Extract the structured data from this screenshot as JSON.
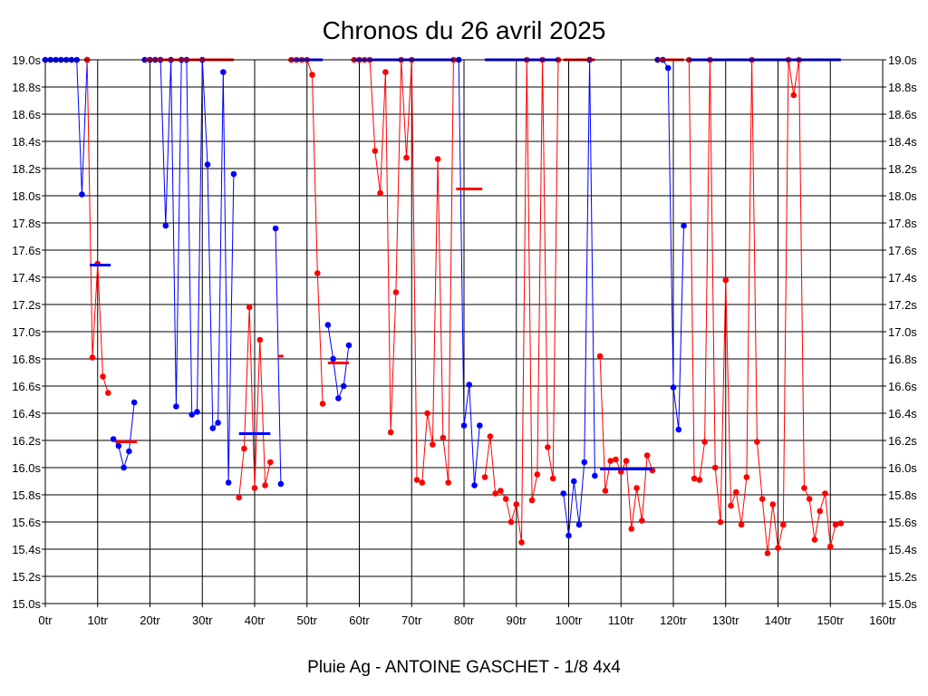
{
  "chart_data": {
    "type": "line",
    "title": "Chronos du 26 avril 2025",
    "subtitle": "Pluie Ag - ANTOINE GASCHET - 1/8 4x4",
    "xlabel": "",
    "ylabel": "",
    "xlim": [
      0,
      160
    ],
    "ylim": [
      15.0,
      19.0
    ],
    "x_ticks": [
      0,
      10,
      20,
      30,
      40,
      50,
      60,
      70,
      80,
      90,
      100,
      110,
      120,
      130,
      140,
      150,
      160
    ],
    "x_tick_labels": [
      "0tr",
      "10tr",
      "20tr",
      "30tr",
      "40tr",
      "50tr",
      "60tr",
      "70tr",
      "80tr",
      "90tr",
      "100tr",
      "110tr",
      "120tr",
      "130tr",
      "140tr",
      "150tr",
      "160tr"
    ],
    "y_ticks": [
      15.0,
      15.2,
      15.4,
      15.6,
      15.8,
      16.0,
      16.2,
      16.4,
      16.6,
      16.8,
      17.0,
      17.2,
      17.4,
      17.6,
      17.8,
      18.0,
      18.2,
      18.4,
      18.6,
      18.8,
      19.0
    ],
    "y_tick_labels": [
      "15.0s",
      "15.2s",
      "15.4s",
      "15.6s",
      "15.8s",
      "16.0s",
      "16.2s",
      "16.4s",
      "16.6s",
      "16.8s",
      "17.0s",
      "17.2s",
      "17.4s",
      "17.6s",
      "17.8s",
      "18.0s",
      "18.2s",
      "18.4s",
      "18.6s",
      "18.8s",
      "19.0s"
    ],
    "y_axis_right": true,
    "grid": true,
    "legend": "none",
    "colors": {
      "blue": "#0000ff",
      "red": "#ff0000",
      "grid": "#000000"
    },
    "series": [
      {
        "color": "blue",
        "x": [
          0,
          1,
          2,
          3,
          4,
          5,
          6,
          7,
          8
        ],
        "y": [
          19.0,
          19.0,
          19.0,
          19.0,
          19.0,
          19.0,
          19.0,
          18.01,
          19.0
        ]
      },
      {
        "color": "red",
        "x": [
          8,
          9,
          10,
          11,
          12
        ],
        "y": [
          19.0,
          16.81,
          17.5,
          16.67,
          16.55
        ]
      },
      {
        "color": "blue",
        "x": [
          13,
          14,
          15,
          16,
          17
        ],
        "y": [
          16.21,
          16.16,
          16.0,
          16.12,
          16.48
        ]
      },
      {
        "color": "blue",
        "x": [
          19,
          20,
          21,
          22,
          23,
          24,
          25,
          26,
          27,
          28,
          29,
          30,
          31,
          32,
          33,
          34,
          35,
          36
        ],
        "y": [
          19.0,
          19.0,
          19.0,
          19.0,
          17.78,
          19.0,
          16.45,
          19.0,
          19.0,
          16.39,
          16.41,
          19.0,
          18.23,
          16.29,
          16.33,
          18.91,
          15.89,
          18.16
        ]
      },
      {
        "color": "red",
        "x": [
          37,
          38,
          39,
          40,
          41,
          42,
          43
        ],
        "y": [
          15.78,
          16.14,
          17.18,
          15.85,
          16.94,
          15.87,
          16.04
        ]
      },
      {
        "color": "blue",
        "x": [
          44,
          45
        ],
        "y": [
          17.76,
          15.88
        ]
      },
      {
        "color": "red",
        "x": [
          47,
          48,
          49,
          50,
          51,
          52,
          53
        ],
        "y": [
          19.0,
          19.0,
          19.0,
          19.0,
          18.89,
          17.43,
          16.47
        ]
      },
      {
        "color": "blue",
        "x": [
          54,
          55,
          56,
          57,
          58
        ],
        "y": [
          17.05,
          16.8,
          16.51,
          16.6,
          16.9
        ]
      },
      {
        "color": "red",
        "x": [
          59,
          60,
          61,
          62,
          63,
          64,
          65,
          66,
          67,
          68,
          69,
          70,
          71,
          72,
          73,
          74,
          75,
          76,
          77,
          78
        ],
        "y": [
          19.0,
          19.0,
          19.0,
          19.0,
          18.33,
          18.02,
          18.91,
          16.26,
          17.29,
          19.0,
          18.28,
          19.0,
          15.91,
          15.89,
          16.4,
          16.17,
          18.27,
          16.22,
          15.89,
          19.0
        ]
      },
      {
        "color": "blue",
        "x": [
          79,
          80,
          81,
          82,
          83
        ],
        "y": [
          19.0,
          16.31,
          16.61,
          15.87,
          16.31
        ]
      },
      {
        "color": "red",
        "x": [
          84,
          85,
          86,
          87,
          88,
          89,
          90,
          91,
          92,
          93,
          94,
          95,
          96,
          97,
          98
        ],
        "y": [
          15.93,
          16.23,
          15.81,
          15.83,
          15.77,
          15.6,
          15.73,
          15.45,
          19.0,
          15.76,
          15.95,
          19.0,
          16.15,
          15.92,
          19.0
        ]
      },
      {
        "color": "blue",
        "x": [
          99,
          100,
          101,
          102,
          103,
          104,
          105
        ],
        "y": [
          15.81,
          15.5,
          15.9,
          15.58,
          16.04,
          19.0,
          15.94
        ]
      },
      {
        "color": "red",
        "x": [
          106,
          107,
          108,
          109,
          110,
          111,
          112,
          113,
          114,
          115,
          116
        ],
        "y": [
          16.82,
          15.83,
          16.05,
          16.06,
          15.97,
          16.05,
          15.55,
          15.85,
          15.61,
          16.09,
          15.98
        ]
      },
      {
        "color": "blue",
        "x": [
          117,
          118,
          119,
          120,
          121,
          122
        ],
        "y": [
          19.0,
          19.0,
          18.94,
          16.59,
          16.28,
          17.78
        ]
      },
      {
        "color": "red",
        "x": [
          123,
          124,
          125,
          126,
          127,
          128,
          129,
          130,
          131,
          132,
          133,
          134,
          135,
          136,
          137,
          138,
          139,
          140,
          141,
          142,
          143,
          144,
          145,
          146,
          147,
          148,
          149,
          150,
          151,
          152
        ],
        "y": [
          19.0,
          15.92,
          15.91,
          16.19,
          19.0,
          16.0,
          15.6,
          17.38,
          15.72,
          15.82,
          15.58,
          15.93,
          19.0,
          16.19,
          15.77,
          15.37,
          15.73,
          15.41,
          15.58,
          19.0,
          18.74,
          19.0,
          15.85,
          15.77,
          15.47,
          15.68,
          15.81,
          15.42,
          15.58,
          15.59
        ]
      }
    ],
    "average_markers": [
      {
        "color": "blue",
        "x_start": 8.5,
        "x_end": 12.5,
        "y": 17.49
      },
      {
        "color": "red",
        "x_start": 13.5,
        "x_end": 17.5,
        "y": 16.19
      },
      {
        "color": "red",
        "x_start": 19.0,
        "x_end": 36.0,
        "y": 19.0
      },
      {
        "color": "blue",
        "x_start": 37.0,
        "x_end": 43.0,
        "y": 16.25
      },
      {
        "color": "red",
        "x_start": 44.5,
        "x_end": 45.5,
        "y": 16.82
      },
      {
        "color": "blue",
        "x_start": 47.0,
        "x_end": 53.0,
        "y": 19.0
      },
      {
        "color": "red",
        "x_start": 54.0,
        "x_end": 58.0,
        "y": 16.77
      },
      {
        "color": "blue",
        "x_start": 59.0,
        "x_end": 78.0,
        "y": 19.0
      },
      {
        "color": "red",
        "x_start": 78.5,
        "x_end": 83.5,
        "y": 18.05
      },
      {
        "color": "blue",
        "x_start": 84.0,
        "x_end": 98.0,
        "y": 19.0
      },
      {
        "color": "red",
        "x_start": 99.0,
        "x_end": 105.0,
        "y": 19.0
      },
      {
        "color": "blue",
        "x_start": 106.0,
        "x_end": 116.0,
        "y": 15.99
      },
      {
        "color": "red",
        "x_start": 117.0,
        "x_end": 122.0,
        "y": 19.0
      },
      {
        "color": "blue",
        "x_start": 123.0,
        "x_end": 152.0,
        "y": 19.0
      }
    ]
  }
}
